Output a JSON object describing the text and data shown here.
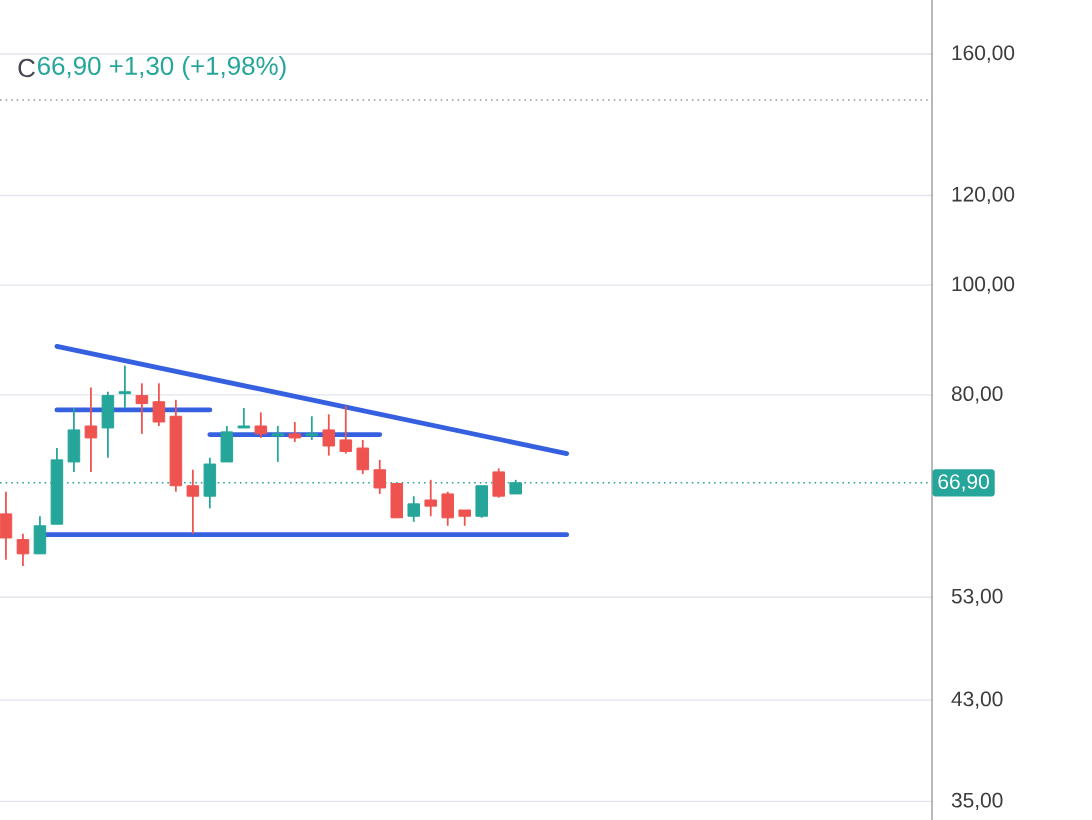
{
  "chart_data": {
    "type": "candlestick",
    "annotations": [
      "C",
      "66,90 +1,30 (+1,98%)"
    ],
    "categories": [
      null,
      null,
      null,
      null,
      null,
      null,
      null,
      null,
      null,
      null,
      null,
      null,
      null,
      null,
      null,
      null,
      null,
      null,
      null,
      null,
      null,
      null,
      null,
      null,
      null,
      null,
      null,
      null,
      null,
      null,
      null,
      null,
      null,
      null,
      null,
      null,
      null,
      null,
      null,
      null,
      null,
      null,
      null,
      null,
      null,
      null,
      null,
      null,
      null,
      null,
      null,
      null,
      null,
      null,
      null
    ],
    "ohlc": [
      [
        62.8,
        65.7,
        57.2,
        59.8
      ],
      [
        59.6,
        60.3,
        56.5,
        57.9
      ],
      [
        57.9,
        62.5,
        57.9,
        61.3
      ],
      [
        61.5,
        71.8,
        61.5,
        70.1
      ],
      [
        69.8,
        77.9,
        68.4,
        74.5
      ],
      [
        75.1,
        81.2,
        68.4,
        73.3
      ],
      [
        74.8,
        80.5,
        70.4,
        79.9
      ],
      [
        80.2,
        84.9,
        77.9,
        80.5
      ],
      [
        79.9,
        81.9,
        73.9,
        78.6
      ],
      [
        78.9,
        81.9,
        75.1,
        75.7
      ],
      [
        76.6,
        79.2,
        65.7,
        66.5
      ],
      [
        66.5,
        68.7,
        60.3,
        65.1
      ],
      [
        65.1,
        70.4,
        63.5,
        69.5
      ],
      [
        69.8,
        75.1,
        69.8,
        74.2
      ],
      [
        74.8,
        77.9,
        74.8,
        75.1
      ],
      [
        75.1,
        77.2,
        73.3,
        73.9
      ],
      [
        73.6,
        75.1,
        69.8,
        73.9
      ],
      [
        73.9,
        75.7,
        72.7,
        73.3
      ],
      [
        73.6,
        76.6,
        73.0,
        73.9
      ],
      [
        74.5,
        76.9,
        70.7,
        72.1
      ],
      [
        73.0,
        78.2,
        71.0,
        71.3
      ],
      [
        71.8,
        73.0,
        68.1,
        68.7
      ],
      [
        68.7,
        70.1,
        65.4,
        66.2
      ],
      [
        66.8,
        66.8,
        62.3,
        62.3
      ],
      [
        62.5,
        65.1,
        61.8,
        64.1
      ],
      [
        64.6,
        67.3,
        62.5,
        63.8
      ],
      [
        65.4,
        65.7,
        61.3,
        62.3
      ],
      [
        63.3,
        63.3,
        61.3,
        62.5
      ],
      [
        62.5,
        66.5,
        62.3,
        66.5
      ],
      [
        68.4,
        68.9,
        64.9,
        65.1
      ],
      [
        65.4,
        67.3,
        65.4,
        66.9
      ],
      null,
      null,
      null,
      null,
      null,
      null,
      null,
      null,
      null,
      null,
      null,
      null,
      null,
      null,
      null,
      null,
      null,
      null,
      null,
      null,
      null,
      null,
      null,
      null
    ],
    "colors": [
      "#ef5350",
      "#ef5350",
      "#26a69a",
      "#26a69a",
      "#26a69a",
      "#ef5350",
      "#26a69a",
      "#26a69a",
      "#ef5350",
      "#ef5350",
      "#ef5350",
      "#ef5350",
      "#26a69a",
      "#26a69a",
      "#26a69a",
      "#ef5350",
      "#26a69a",
      "#ef5350",
      "#26a69a",
      "#ef5350",
      "#ef5350",
      "#ef5350",
      "#ef5350",
      "#ef5350",
      "#26a69a",
      "#ef5350",
      "#ef5350",
      "#ef5350",
      "#26a69a",
      "#ef5350",
      "#26a69a",
      null,
      null,
      null,
      null,
      null,
      null,
      null,
      null,
      null,
      null,
      null,
      null,
      null,
      null,
      null,
      null,
      null,
      null,
      null,
      null,
      null,
      null,
      null,
      null
    ],
    "series": [
      {
        "type": "line",
        "color": "#3560e0",
        "values": [
          null,
          null,
          null,
          88.3,
          null,
          null,
          null,
          null,
          null,
          null,
          null,
          null,
          null,
          null,
          null,
          null,
          null,
          null,
          null,
          null,
          null,
          null,
          null,
          null,
          null,
          null,
          null,
          null,
          null,
          null,
          null,
          null,
          null,
          71.0,
          null,
          null,
          null,
          null,
          null,
          null,
          null,
          null,
          null,
          null,
          null,
          null,
          null,
          null,
          null,
          null,
          null,
          null,
          null,
          null,
          null
        ]
      },
      {
        "type": "line",
        "color": "#3560e0",
        "values": [
          null,
          null,
          null,
          77.6,
          null,
          null,
          null,
          null,
          null,
          null,
          null,
          null,
          77.6,
          null,
          null,
          null,
          null,
          null,
          null,
          null,
          null,
          null,
          null,
          null,
          null,
          null,
          null,
          null,
          null,
          null,
          null,
          null,
          null,
          null,
          null,
          null,
          null,
          null,
          null,
          null,
          null,
          null,
          null,
          null,
          null,
          null,
          null,
          null,
          null,
          null,
          null,
          null,
          null,
          null,
          null
        ]
      },
      {
        "type": "line",
        "color": "#3560e0",
        "values": [
          null,
          null,
          null,
          null,
          null,
          null,
          null,
          null,
          null,
          null,
          null,
          null,
          73.8,
          null,
          null,
          null,
          null,
          null,
          null,
          null,
          null,
          null,
          73.8,
          null,
          null,
          null,
          null,
          null,
          null,
          null,
          null,
          null,
          null,
          null,
          null,
          null,
          null,
          null,
          null,
          null,
          null,
          null,
          null,
          null,
          null,
          null,
          null,
          null,
          null,
          null,
          null,
          null,
          null,
          null,
          null
        ]
      },
      {
        "type": "line",
        "color": "#3560e0",
        "values": [
          null,
          null,
          60.2,
          null,
          null,
          null,
          null,
          null,
          null,
          null,
          null,
          null,
          null,
          null,
          null,
          null,
          null,
          null,
          null,
          null,
          null,
          null,
          null,
          null,
          null,
          null,
          null,
          null,
          null,
          null,
          null,
          null,
          null,
          60.2,
          null,
          null,
          null,
          null,
          null,
          null,
          null,
          null,
          null,
          null,
          null,
          null,
          null,
          null,
          null,
          null,
          null,
          null,
          null,
          null,
          null
        ]
      }
    ],
    "ref_lines": [
      {
        "axis": "y",
        "value": 66.9,
        "label": "66,90",
        "color": "#26a69a",
        "line_style": "dotted"
      },
      {
        "axis": "y",
        "value": 145.7,
        "color": "#9598a1",
        "line_style": "dotted"
      }
    ],
    "ylim": [
      33.7,
      178.6
    ],
    "yticks": [
      {
        "value": 35,
        "label": "35,00"
      },
      {
        "value": 43,
        "label": "43,00"
      },
      {
        "value": 53,
        "label": "53,00"
      },
      {
        "value": 80,
        "label": "80,00"
      },
      {
        "value": 100,
        "label": "100,00"
      },
      {
        "value": 120,
        "label": "120,00"
      },
      {
        "value": 160,
        "label": "160,00"
      }
    ],
    "log": "y",
    "grid": "y",
    "tick_labels": "y"
  }
}
